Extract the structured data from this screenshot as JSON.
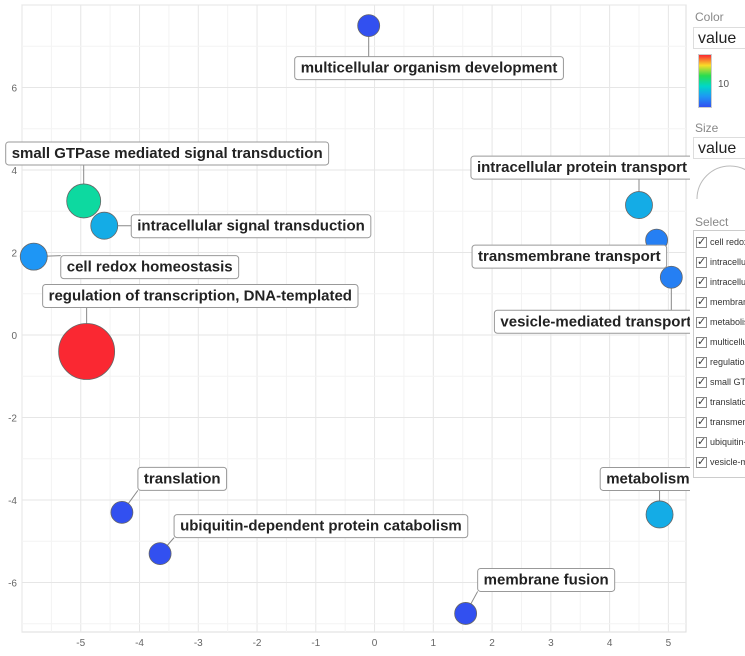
{
  "chart_data": {
    "type": "scatter",
    "title": "",
    "xlabel": "",
    "ylabel": "",
    "xlim": [
      -6.0,
      5.3
    ],
    "ylim": [
      -7.2,
      8.0
    ],
    "x_ticks": [
      -5,
      -4,
      -3,
      -2,
      -1,
      0,
      1,
      2,
      3,
      4,
      5
    ],
    "y_ticks": [
      -6,
      -4,
      -2,
      0,
      2,
      4,
      6
    ],
    "grid": true,
    "points": [
      {
        "label": "multicellular organism development",
        "x": -0.1,
        "y": 7.5,
        "size": 1,
        "value": 2
      },
      {
        "label": "small GTPase mediated signal transduction",
        "x": -4.95,
        "y": 3.25,
        "size": 2,
        "value": 9
      },
      {
        "label": "intracellular signal transduction",
        "x": -4.6,
        "y": 2.65,
        "size": 1.5,
        "value": 6
      },
      {
        "label": "cell redox homeostasis",
        "x": -5.8,
        "y": 1.9,
        "size": 1.5,
        "value": 5
      },
      {
        "label": "regulation of transcription, DNA-templated",
        "x": -4.9,
        "y": -0.4,
        "size": 6,
        "value": 17
      },
      {
        "label": "intracellular protein transport",
        "x": 4.5,
        "y": 3.15,
        "size": 1.7,
        "value": 6
      },
      {
        "label": "transmembrane transport",
        "x": 4.8,
        "y": 2.3,
        "size": 1.2,
        "value": 4
      },
      {
        "label": "vesicle-mediated transport",
        "x": 5.05,
        "y": 1.4,
        "size": 1.2,
        "value": 4
      },
      {
        "label": "translation",
        "x": -4.3,
        "y": -4.3,
        "size": 1,
        "value": 2
      },
      {
        "label": "ubiquitin-dependent protein catabolism",
        "x": -3.65,
        "y": -5.3,
        "size": 1,
        "value": 2
      },
      {
        "label": "metabolism",
        "x": 4.85,
        "y": -4.35,
        "size": 1.7,
        "value": 6
      },
      {
        "label": "membrane fusion",
        "x": 1.55,
        "y": -6.75,
        "size": 1,
        "value": 2
      }
    ]
  },
  "legend": {
    "color_title": "Color",
    "color_select": "value",
    "color_tick": "10",
    "size_title": "Size",
    "size_select": "value",
    "select_title": "Select",
    "select_items": [
      "cell redox homeostasis",
      "intracellular protein transport",
      "intracellular signal transduction",
      "membrane fusion",
      "metabolism",
      "multicellular organism development",
      "regulation of transcription, DNA-templated",
      "small GTPase mediated signal transduction",
      "translation",
      "transmembrane transport",
      "ubiquitin-dependent protein catabolism",
      "vesicle-mediated transport"
    ]
  }
}
